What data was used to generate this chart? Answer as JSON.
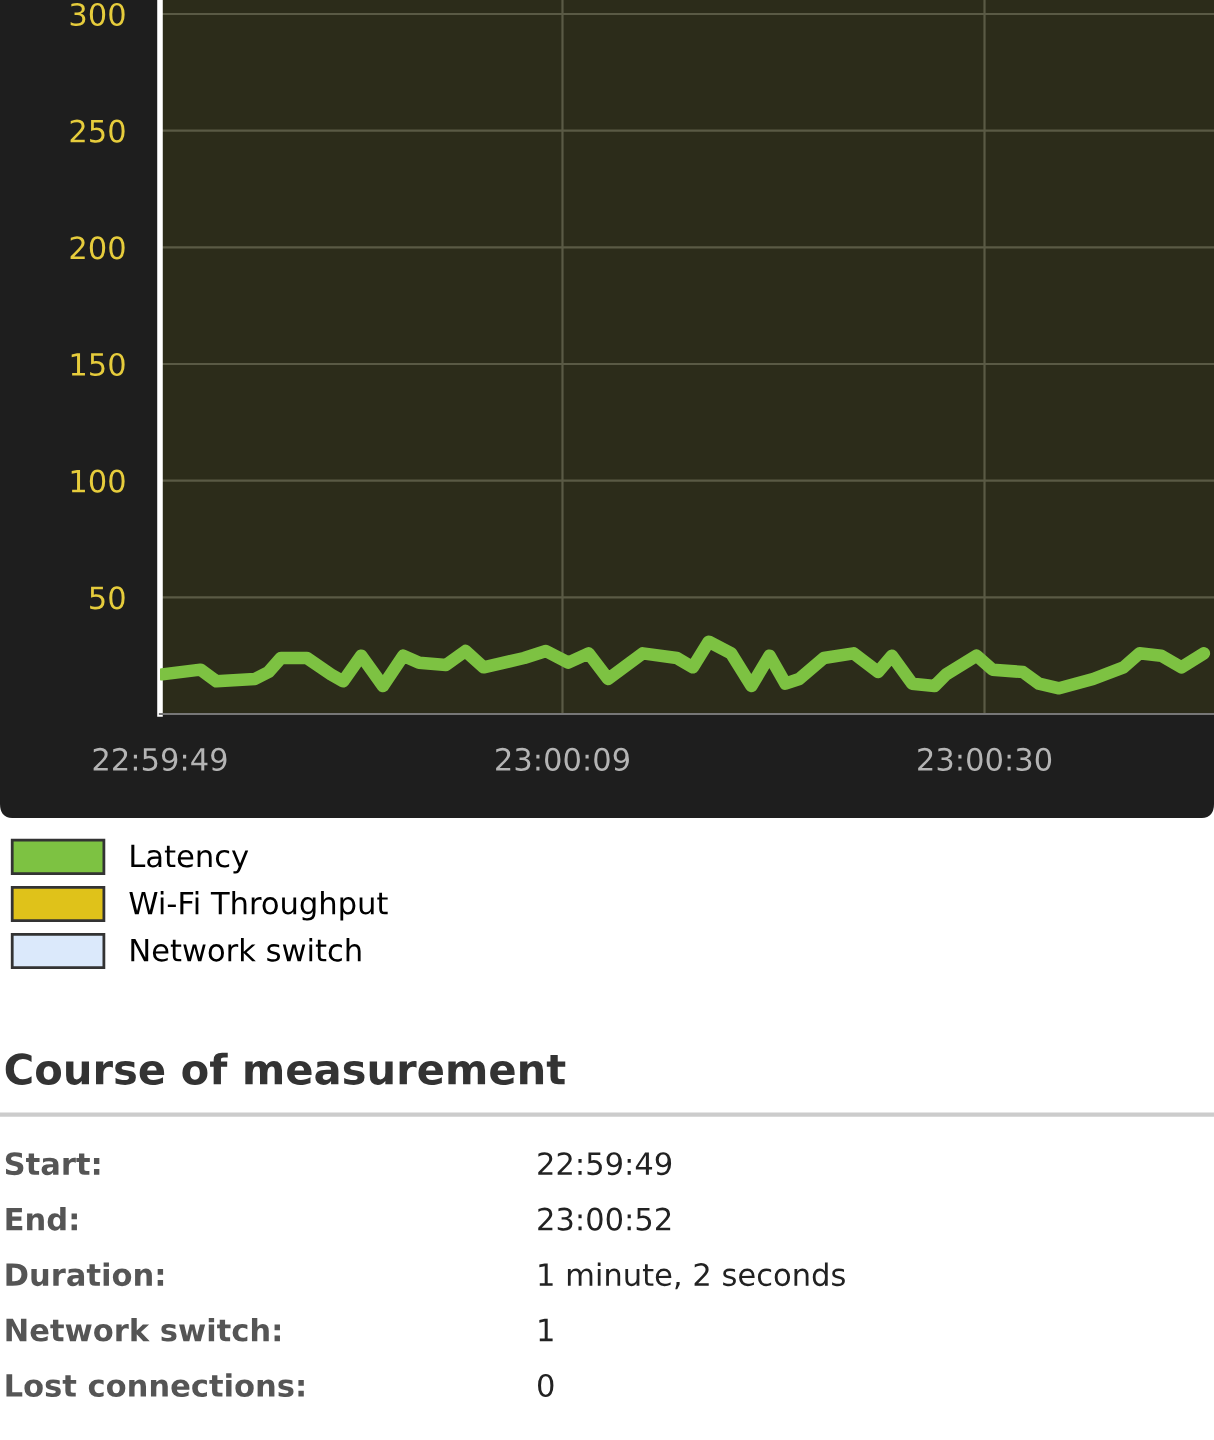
{
  "chart_data": {
    "type": "line",
    "x": [
      22.99697,
      22.9975,
      22.99772,
      22.99825,
      22.99844,
      22.99861,
      22.99897,
      22.9993,
      22.99947,
      22.99972,
      23.00002,
      23.0003,
      23.00052,
      23.00089,
      23.00116,
      23.00141,
      23.00197,
      23.00227,
      23.00258,
      23.00286,
      23.00313,
      23.00361,
      23.00408,
      23.0043,
      23.00452,
      23.00483,
      23.00511,
      23.00536,
      23.00558,
      23.00577,
      23.00611,
      23.00652,
      23.00686,
      23.00705,
      23.00733,
      23.00764,
      23.0078,
      23.00822,
      23.00844,
      23.00886,
      23.00908,
      23.00936,
      23.00983,
      23.01025,
      23.01047,
      23.01077,
      23.01105,
      23.01136
    ],
    "series": [
      {
        "name": "Latency",
        "color": "#7dc242",
        "values": [
          17,
          19,
          14,
          15,
          18,
          24,
          24,
          17,
          14,
          25,
          12,
          25,
          22,
          21,
          27,
          20,
          24,
          27,
          22,
          26,
          15,
          26,
          24,
          20,
          31,
          26,
          12,
          25,
          13,
          15,
          24,
          26,
          18,
          25,
          13,
          12,
          17,
          25,
          19,
          18,
          13,
          11,
          15,
          20,
          26,
          25,
          20,
          26
        ]
      },
      {
        "name": "Wi-Fi Throughput",
        "color": "#dfc21a",
        "values": [
          null,
          null,
          null,
          null,
          null,
          null,
          null,
          null,
          null,
          null,
          null,
          null,
          null,
          null,
          null,
          null,
          null,
          null,
          null,
          null,
          null,
          null,
          null,
          null,
          null,
          null,
          null,
          null,
          null,
          null,
          null,
          null,
          null,
          null,
          null,
          null,
          null,
          null,
          null,
          null,
          null,
          null,
          null,
          null,
          null,
          null,
          null,
          null
        ]
      },
      {
        "name": "Network switch",
        "color": "#dbe9fb",
        "values": [
          null,
          null,
          null,
          null,
          null,
          null,
          null,
          null,
          null,
          null,
          null,
          null,
          null,
          null,
          null,
          null,
          null,
          null,
          null,
          null,
          null,
          null,
          null,
          null,
          null,
          null,
          null,
          null,
          null,
          null,
          null,
          null,
          null,
          null,
          null,
          null,
          null,
          null,
          null,
          null,
          null,
          null,
          null,
          null,
          null,
          null,
          null,
          null
        ]
      }
    ],
    "xlim": [
      22.99694,
      23.0115
    ],
    "xticks": [
      {
        "value": 22.99694,
        "label": "22:59:49"
      },
      {
        "value": 23.0025,
        "label": "23:00:09"
      },
      {
        "value": 23.00833,
        "label": "23:00:30"
      }
    ],
    "ylim": [
      0,
      306
    ],
    "yticks": [
      {
        "value": 50,
        "label": "50"
      },
      100,
      150,
      200,
      250,
      300
    ],
    "grid": true,
    "legend": "bottom",
    "marker": "none",
    "line_style": "solid",
    "annotations": [
      "Course of measurement",
      "Start:",
      "22:59:49",
      "End:",
      "23:00:52",
      "Duration:",
      "1 minute, 2 seconds",
      "Network switch:",
      "1",
      "Lost connections:",
      "0"
    ]
  }
}
